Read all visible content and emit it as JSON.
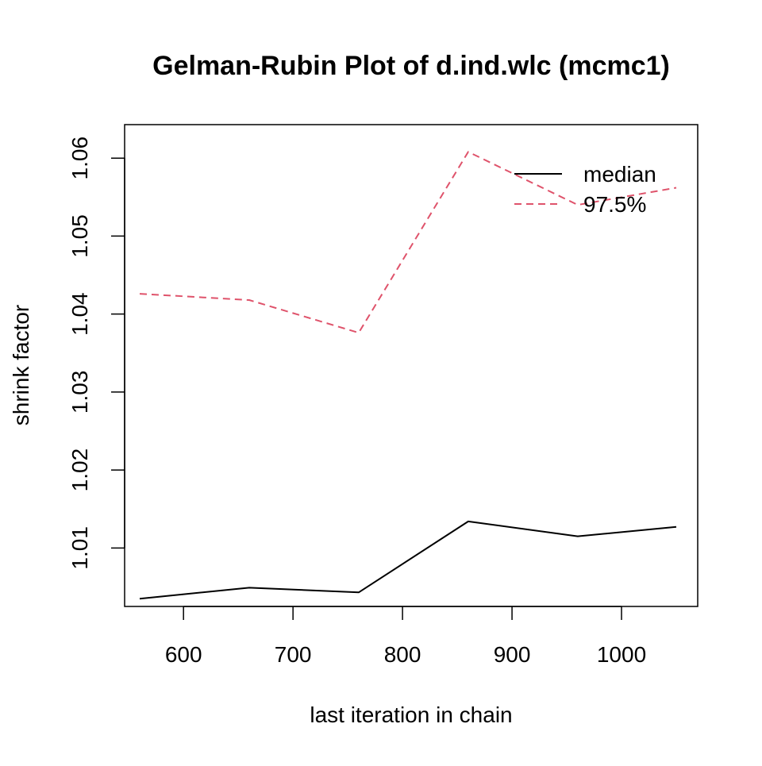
{
  "chart_data": {
    "type": "line",
    "title": "Gelman-Rubin Plot of d.ind.wlc (mcmc1)",
    "xlabel": "last iteration in chain",
    "ylabel": "shrink factor",
    "xlim": [
      560,
      1050
    ],
    "ylim": [
      1.0025,
      1.0645
    ],
    "x_ticks": [
      600,
      700,
      800,
      900,
      1000
    ],
    "x_tick_labels": [
      "600",
      "700",
      "800",
      "900",
      "1000"
    ],
    "y_ticks": [
      1.01,
      1.02,
      1.03,
      1.04,
      1.05,
      1.06
    ],
    "y_tick_labels": [
      "1.01",
      "1.02",
      "1.03",
      "1.04",
      "1.05",
      "1.06"
    ],
    "x": [
      560,
      660,
      760,
      860,
      960,
      1050
    ],
    "series": [
      {
        "name": "median",
        "values": [
          1.0035,
          1.0049,
          1.0043,
          1.0134,
          1.0115,
          1.0127
        ],
        "color": "#000000",
        "dash": "solid"
      },
      {
        "name": "97.5%",
        "values": [
          1.0426,
          1.0418,
          1.0376,
          1.0608,
          1.054,
          1.0562
        ],
        "color": "#DF536B",
        "dash": "dashed"
      }
    ],
    "grid": false,
    "legend_position": "top-right"
  }
}
